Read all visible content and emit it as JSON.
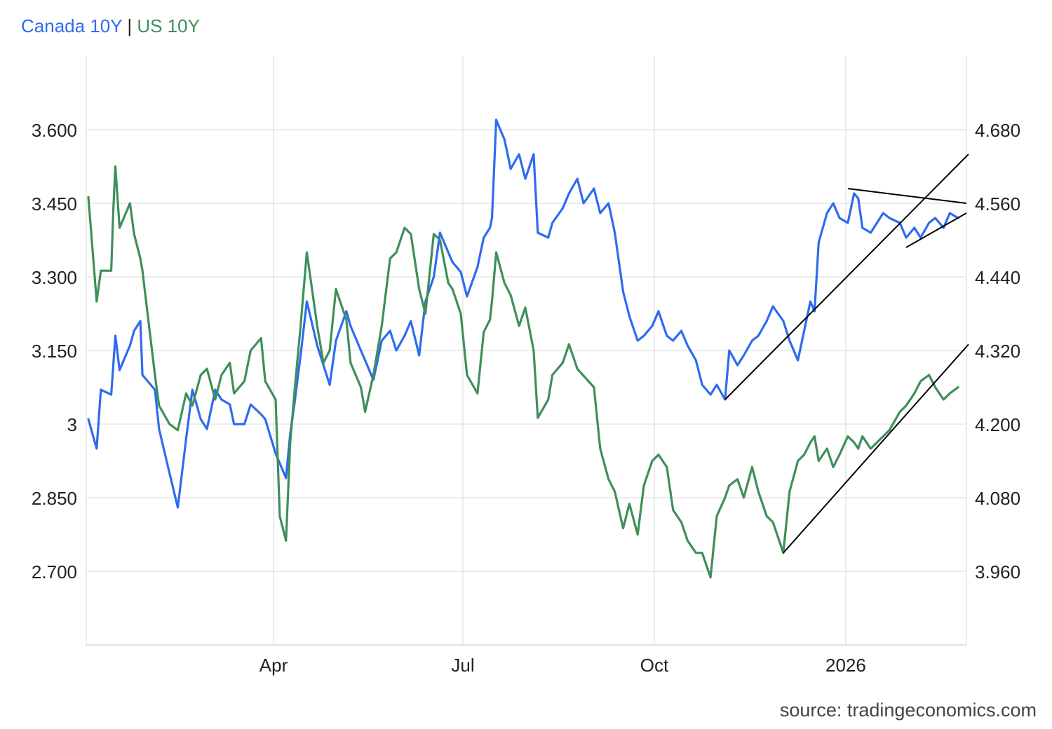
{
  "legend": {
    "canada": "Canada 10Y",
    "separator": "|",
    "us": "US 10Y"
  },
  "source": "source: tradingeconomics.com",
  "colors": {
    "canada": "#2f6bf0",
    "us": "#3f8f5a",
    "trendline": "#000000",
    "grid": "#e6e6e6",
    "axis_text": "#222222"
  },
  "chart_data": {
    "type": "line",
    "x_axis": {
      "labels": [
        "Apr",
        "Jul",
        "Oct",
        "2026"
      ],
      "range": [
        "2025-01-01",
        "2026-02-28"
      ]
    },
    "y_left": {
      "series": "Canada 10Y",
      "ticks": [
        "3.600",
        "3.450",
        "3.300",
        "3.150",
        "3",
        "2.850",
        "2.700"
      ],
      "range": [
        2.55,
        3.75
      ]
    },
    "y_right": {
      "series": "US 10Y",
      "ticks": [
        "4.680",
        "4.560",
        "4.440",
        "4.320",
        "4.200",
        "4.080",
        "3.960"
      ],
      "range": [
        3.84,
        4.8
      ]
    },
    "grid": true,
    "series": [
      {
        "name": "Canada 10Y",
        "axis": "left",
        "points": [
          [
            "2025-01-02",
            3.01
          ],
          [
            "2025-01-06",
            2.95
          ],
          [
            "2025-01-08",
            3.07
          ],
          [
            "2025-01-13",
            3.06
          ],
          [
            "2025-01-15",
            3.18
          ],
          [
            "2025-01-17",
            3.11
          ],
          [
            "2025-01-22",
            3.16
          ],
          [
            "2025-01-24",
            3.19
          ],
          [
            "2025-01-27",
            3.21
          ],
          [
            "2025-01-28",
            3.1
          ],
          [
            "2025-02-03",
            3.07
          ],
          [
            "2025-02-05",
            2.99
          ],
          [
            "2025-02-10",
            2.9
          ],
          [
            "2025-02-14",
            2.83
          ],
          [
            "2025-02-18",
            2.97
          ],
          [
            "2025-02-21",
            3.07
          ],
          [
            "2025-02-25",
            3.01
          ],
          [
            "2025-02-28",
            2.99
          ],
          [
            "2025-03-04",
            3.07
          ],
          [
            "2025-03-07",
            3.05
          ],
          [
            "2025-03-11",
            3.04
          ],
          [
            "2025-03-13",
            3.0
          ],
          [
            "2025-03-18",
            3.0
          ],
          [
            "2025-03-21",
            3.04
          ],
          [
            "2025-03-26",
            3.02
          ],
          [
            "2025-03-28",
            3.01
          ],
          [
            "2025-04-02",
            2.94
          ],
          [
            "2025-04-04",
            2.92
          ],
          [
            "2025-04-07",
            2.89
          ],
          [
            "2025-04-09",
            2.98
          ],
          [
            "2025-04-11",
            3.04
          ],
          [
            "2025-04-14",
            3.14
          ],
          [
            "2025-04-17",
            3.25
          ],
          [
            "2025-04-22",
            3.16
          ],
          [
            "2025-04-25",
            3.12
          ],
          [
            "2025-04-28",
            3.08
          ],
          [
            "2025-05-01",
            3.17
          ],
          [
            "2025-05-06",
            3.23
          ],
          [
            "2025-05-08",
            3.2
          ],
          [
            "2025-05-13",
            3.15
          ],
          [
            "2025-05-15",
            3.13
          ],
          [
            "2025-05-19",
            3.09
          ],
          [
            "2025-05-23",
            3.17
          ],
          [
            "2025-05-27",
            3.19
          ],
          [
            "2025-05-30",
            3.15
          ],
          [
            "2025-06-03",
            3.18
          ],
          [
            "2025-06-06",
            3.21
          ],
          [
            "2025-06-10",
            3.14
          ],
          [
            "2025-06-13",
            3.25
          ],
          [
            "2025-06-17",
            3.3
          ],
          [
            "2025-06-20",
            3.39
          ],
          [
            "2025-06-24",
            3.35
          ],
          [
            "2025-06-26",
            3.33
          ],
          [
            "2025-06-30",
            3.31
          ],
          [
            "2025-07-03",
            3.26
          ],
          [
            "2025-07-08",
            3.32
          ],
          [
            "2025-07-11",
            3.38
          ],
          [
            "2025-07-14",
            3.4
          ],
          [
            "2025-07-15",
            3.42
          ],
          [
            "2025-07-17",
            3.62
          ],
          [
            "2025-07-21",
            3.58
          ],
          [
            "2025-07-24",
            3.52
          ],
          [
            "2025-07-28",
            3.55
          ],
          [
            "2025-07-31",
            3.5
          ],
          [
            "2025-08-04",
            3.55
          ],
          [
            "2025-08-06",
            3.39
          ],
          [
            "2025-08-11",
            3.38
          ],
          [
            "2025-08-13",
            3.41
          ],
          [
            "2025-08-18",
            3.44
          ],
          [
            "2025-08-21",
            3.47
          ],
          [
            "2025-08-25",
            3.5
          ],
          [
            "2025-08-28",
            3.45
          ],
          [
            "2025-09-02",
            3.48
          ],
          [
            "2025-09-05",
            3.43
          ],
          [
            "2025-09-09",
            3.45
          ],
          [
            "2025-09-12",
            3.39
          ],
          [
            "2025-09-16",
            3.27
          ],
          [
            "2025-09-19",
            3.22
          ],
          [
            "2025-09-23",
            3.17
          ],
          [
            "2025-09-26",
            3.18
          ],
          [
            "2025-09-30",
            3.2
          ],
          [
            "2025-10-03",
            3.23
          ],
          [
            "2025-10-07",
            3.18
          ],
          [
            "2025-10-10",
            3.17
          ],
          [
            "2025-10-14",
            3.19
          ],
          [
            "2025-10-17",
            3.16
          ],
          [
            "2025-10-21",
            3.13
          ],
          [
            "2025-10-24",
            3.08
          ],
          [
            "2025-10-28",
            3.06
          ],
          [
            "2025-10-31",
            3.08
          ],
          [
            "2025-11-04",
            3.05
          ],
          [
            "2025-11-06",
            3.15
          ],
          [
            "2025-11-10",
            3.12
          ],
          [
            "2025-11-13",
            3.14
          ],
          [
            "2025-11-17",
            3.17
          ],
          [
            "2025-11-20",
            3.18
          ],
          [
            "2025-11-24",
            3.21
          ],
          [
            "2025-11-27",
            3.24
          ],
          [
            "2025-12-02",
            3.21
          ],
          [
            "2025-12-05",
            3.17
          ],
          [
            "2025-12-09",
            3.13
          ],
          [
            "2025-12-12",
            3.19
          ],
          [
            "2025-12-15",
            3.25
          ],
          [
            "2025-12-17",
            3.23
          ],
          [
            "2025-12-19",
            3.37
          ],
          [
            "2025-12-23",
            3.43
          ],
          [
            "2025-12-26",
            3.45
          ],
          [
            "2025-12-29",
            3.42
          ],
          [
            "2026-01-02",
            3.41
          ],
          [
            "2026-01-05",
            3.47
          ],
          [
            "2026-01-07",
            3.46
          ],
          [
            "2026-01-09",
            3.4
          ],
          [
            "2026-01-13",
            3.39
          ],
          [
            "2026-01-16",
            3.41
          ],
          [
            "2026-01-19",
            3.43
          ],
          [
            "2026-01-22",
            3.42
          ],
          [
            "2026-01-27",
            3.41
          ],
          [
            "2026-01-30",
            3.38
          ],
          [
            "2026-02-03",
            3.4
          ],
          [
            "2026-02-06",
            3.38
          ],
          [
            "2026-02-10",
            3.41
          ],
          [
            "2026-02-13",
            3.42
          ],
          [
            "2026-02-17",
            3.4
          ],
          [
            "2026-02-20",
            3.43
          ],
          [
            "2026-02-24",
            3.42
          ]
        ]
      },
      {
        "name": "US 10Y",
        "axis": "right",
        "points": [
          [
            "2025-01-02",
            4.57
          ],
          [
            "2025-01-06",
            4.4
          ],
          [
            "2025-01-08",
            4.45
          ],
          [
            "2025-01-13",
            4.45
          ],
          [
            "2025-01-14",
            4.55
          ],
          [
            "2025-01-15",
            4.62
          ],
          [
            "2025-01-17",
            4.52
          ],
          [
            "2025-01-22",
            4.56
          ],
          [
            "2025-01-24",
            4.51
          ],
          [
            "2025-01-27",
            4.47
          ],
          [
            "2025-01-28",
            4.45
          ],
          [
            "2025-02-03",
            4.28
          ],
          [
            "2025-02-05",
            4.23
          ],
          [
            "2025-02-10",
            4.2
          ],
          [
            "2025-02-14",
            4.19
          ],
          [
            "2025-02-18",
            4.25
          ],
          [
            "2025-02-21",
            4.23
          ],
          [
            "2025-02-25",
            4.28
          ],
          [
            "2025-02-28",
            4.29
          ],
          [
            "2025-03-04",
            4.24
          ],
          [
            "2025-03-07",
            4.28
          ],
          [
            "2025-03-11",
            4.3
          ],
          [
            "2025-03-13",
            4.25
          ],
          [
            "2025-03-18",
            4.27
          ],
          [
            "2025-03-21",
            4.32
          ],
          [
            "2025-03-26",
            4.34
          ],
          [
            "2025-03-28",
            4.27
          ],
          [
            "2025-04-02",
            4.24
          ],
          [
            "2025-04-04",
            4.05
          ],
          [
            "2025-04-07",
            4.01
          ],
          [
            "2025-04-09",
            4.17
          ],
          [
            "2025-04-11",
            4.25
          ],
          [
            "2025-04-14",
            4.36
          ],
          [
            "2025-04-17",
            4.48
          ],
          [
            "2025-04-22",
            4.36
          ],
          [
            "2025-04-25",
            4.3
          ],
          [
            "2025-04-28",
            4.32
          ],
          [
            "2025-05-01",
            4.42
          ],
          [
            "2025-05-06",
            4.37
          ],
          [
            "2025-05-08",
            4.3
          ],
          [
            "2025-05-13",
            4.26
          ],
          [
            "2025-05-15",
            4.22
          ],
          [
            "2025-05-19",
            4.28
          ],
          [
            "2025-05-23",
            4.36
          ],
          [
            "2025-05-27",
            4.47
          ],
          [
            "2025-05-30",
            4.48
          ],
          [
            "2025-06-03",
            4.52
          ],
          [
            "2025-06-06",
            4.51
          ],
          [
            "2025-06-10",
            4.42
          ],
          [
            "2025-06-13",
            4.38
          ],
          [
            "2025-06-17",
            4.51
          ],
          [
            "2025-06-20",
            4.5
          ],
          [
            "2025-06-24",
            4.43
          ],
          [
            "2025-06-26",
            4.42
          ],
          [
            "2025-06-30",
            4.38
          ],
          [
            "2025-07-03",
            4.28
          ],
          [
            "2025-07-08",
            4.25
          ],
          [
            "2025-07-11",
            4.35
          ],
          [
            "2025-07-14",
            4.37
          ],
          [
            "2025-07-15",
            4.4
          ],
          [
            "2025-07-17",
            4.48
          ],
          [
            "2025-07-21",
            4.43
          ],
          [
            "2025-07-24",
            4.41
          ],
          [
            "2025-07-28",
            4.36
          ],
          [
            "2025-07-31",
            4.39
          ],
          [
            "2025-08-04",
            4.32
          ],
          [
            "2025-08-06",
            4.21
          ],
          [
            "2025-08-11",
            4.24
          ],
          [
            "2025-08-13",
            4.28
          ],
          [
            "2025-08-18",
            4.3
          ],
          [
            "2025-08-21",
            4.33
          ],
          [
            "2025-08-25",
            4.29
          ],
          [
            "2025-09-02",
            4.26
          ],
          [
            "2025-09-05",
            4.16
          ],
          [
            "2025-09-09",
            4.11
          ],
          [
            "2025-09-12",
            4.09
          ],
          [
            "2025-09-16",
            4.03
          ],
          [
            "2025-09-19",
            4.07
          ],
          [
            "2025-09-23",
            4.02
          ],
          [
            "2025-09-26",
            4.1
          ],
          [
            "2025-09-30",
            4.14
          ],
          [
            "2025-10-03",
            4.15
          ],
          [
            "2025-10-07",
            4.13
          ],
          [
            "2025-10-10",
            4.06
          ],
          [
            "2025-10-14",
            4.04
          ],
          [
            "2025-10-17",
            4.01
          ],
          [
            "2025-10-21",
            3.99
          ],
          [
            "2025-10-24",
            3.99
          ],
          [
            "2025-10-28",
            3.95
          ],
          [
            "2025-10-31",
            4.05
          ],
          [
            "2025-11-04",
            4.08
          ],
          [
            "2025-11-06",
            4.1
          ],
          [
            "2025-11-10",
            4.11
          ],
          [
            "2025-11-13",
            4.08
          ],
          [
            "2025-11-17",
            4.13
          ],
          [
            "2025-11-20",
            4.09
          ],
          [
            "2025-11-24",
            4.05
          ],
          [
            "2025-11-27",
            4.04
          ],
          [
            "2025-12-02",
            3.99
          ],
          [
            "2025-12-05",
            4.09
          ],
          [
            "2025-12-09",
            4.14
          ],
          [
            "2025-12-12",
            4.15
          ],
          [
            "2025-12-15",
            4.17
          ],
          [
            "2025-12-17",
            4.18
          ],
          [
            "2025-12-19",
            4.14
          ],
          [
            "2025-12-23",
            4.16
          ],
          [
            "2025-12-26",
            4.13
          ],
          [
            "2025-12-29",
            4.15
          ],
          [
            "2026-01-02",
            4.18
          ],
          [
            "2026-01-05",
            4.17
          ],
          [
            "2026-01-07",
            4.16
          ],
          [
            "2026-01-09",
            4.18
          ],
          [
            "2026-01-13",
            4.16
          ],
          [
            "2026-01-16",
            4.17
          ],
          [
            "2026-01-19",
            4.18
          ],
          [
            "2026-01-22",
            4.19
          ],
          [
            "2026-01-27",
            4.22
          ],
          [
            "2026-01-30",
            4.23
          ],
          [
            "2026-02-03",
            4.25
          ],
          [
            "2026-02-06",
            4.27
          ],
          [
            "2026-02-10",
            4.28
          ],
          [
            "2026-02-13",
            4.26
          ],
          [
            "2026-02-17",
            4.24
          ],
          [
            "2026-02-20",
            4.25
          ],
          [
            "2026-02-24",
            4.26
          ]
        ]
      }
    ],
    "annotations": [
      {
        "type": "trendline",
        "axis": "left",
        "from": [
          "2025-11-04",
          3.05
        ],
        "to": [
          "2026-03-01",
          3.55
        ]
      },
      {
        "type": "trendline",
        "axis": "left",
        "from": [
          "2026-01-02",
          3.48
        ],
        "to": [
          "2026-02-28",
          3.45
        ]
      },
      {
        "type": "trendline",
        "axis": "left",
        "from": [
          "2026-01-30",
          3.36
        ],
        "to": [
          "2026-02-28",
          3.43
        ]
      },
      {
        "type": "trendline",
        "axis": "right",
        "from": [
          "2025-12-02",
          3.99
        ],
        "to": [
          "2026-03-01",
          4.33
        ]
      }
    ]
  }
}
